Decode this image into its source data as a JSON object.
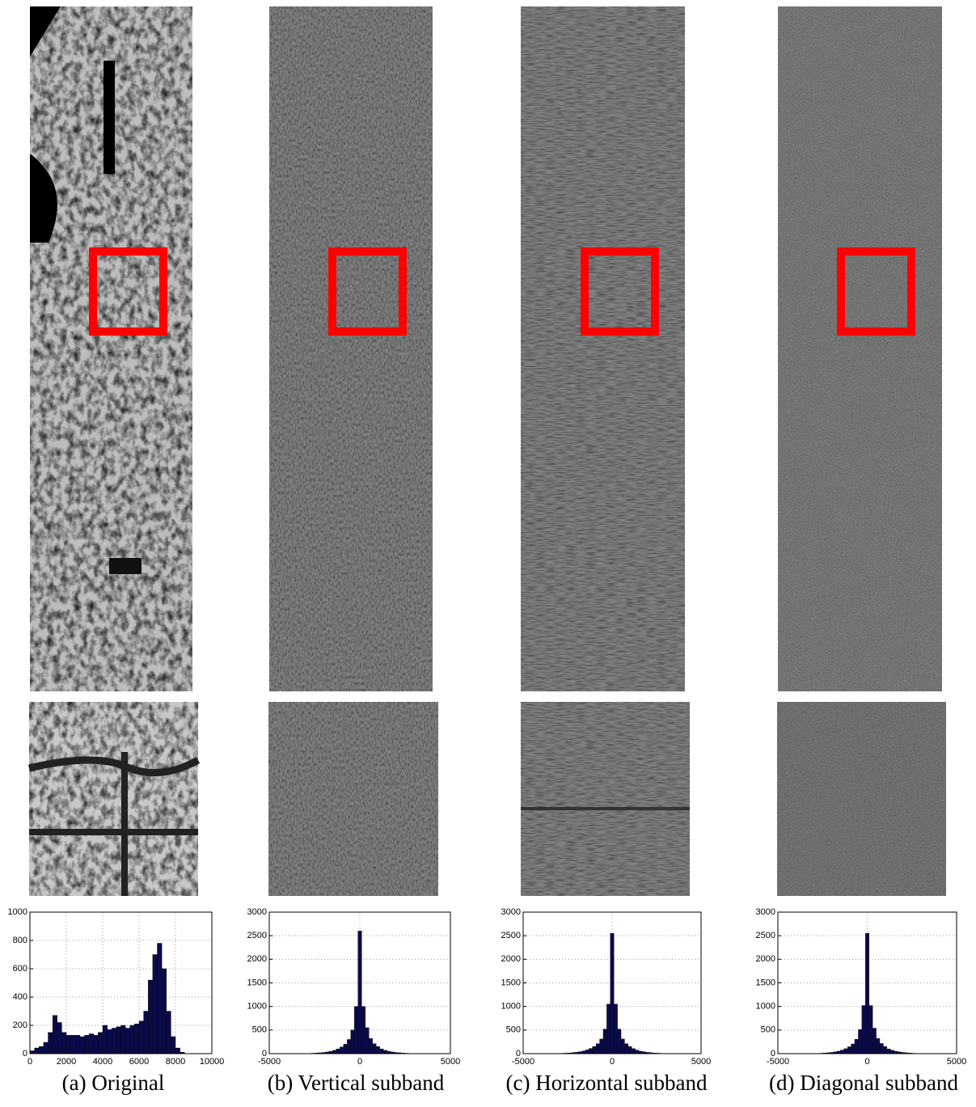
{
  "chart_data": [
    {
      "type": "histogram",
      "caption": "(a) Original",
      "color": "#0b0b4a",
      "grid": true,
      "xlim": [
        0,
        10000
      ],
      "xticks": [
        0,
        2000,
        4000,
        6000,
        8000,
        10000
      ],
      "ylim": [
        0,
        1000
      ],
      "yticks": [
        0,
        200,
        400,
        600,
        800,
        1000
      ],
      "bins": [
        0,
        250,
        500,
        750,
        1000,
        1250,
        1500,
        1750,
        2000,
        2250,
        2500,
        2750,
        3000,
        3250,
        3500,
        3750,
        4000,
        4250,
        4500,
        4750,
        5000,
        5250,
        5500,
        5750,
        6000,
        6250,
        6500,
        6750,
        7000,
        7250,
        7500,
        7750,
        8000,
        8250,
        8500
      ],
      "counts": [
        20,
        40,
        50,
        80,
        150,
        270,
        220,
        150,
        130,
        130,
        130,
        120,
        130,
        140,
        130,
        150,
        200,
        170,
        180,
        190,
        200,
        180,
        200,
        210,
        230,
        300,
        520,
        700,
        780,
        600,
        300,
        120,
        40,
        10
      ]
    },
    {
      "type": "histogram",
      "caption": "(b) Vertical subband",
      "color": "#0b0b4a",
      "grid": true,
      "xlim": [
        -5000,
        5000
      ],
      "xticks": [
        -5000,
        0,
        5000
      ],
      "ylim": [
        0,
        3000
      ],
      "yticks": [
        0,
        500,
        1000,
        1500,
        2000,
        2500,
        3000
      ],
      "bins": [
        -3100,
        -2900,
        -2700,
        -2500,
        -2300,
        -2100,
        -1900,
        -1700,
        -1500,
        -1300,
        -1100,
        -900,
        -700,
        -500,
        -300,
        -100,
        100,
        300,
        500,
        700,
        900,
        1100,
        1300,
        1500,
        1700,
        1900,
        2100,
        2300,
        2500,
        2700,
        2900,
        3100
      ],
      "counts": [
        3,
        5,
        8,
        12,
        18,
        25,
        35,
        50,
        70,
        100,
        140,
        200,
        300,
        500,
        1000,
        2600,
        1000,
        550,
        320,
        210,
        150,
        100,
        70,
        50,
        35,
        25,
        18,
        12,
        8,
        5,
        3
      ]
    },
    {
      "type": "histogram",
      "caption": "(c) Horizontal subband",
      "color": "#0b0b4a",
      "grid": true,
      "xlim": [
        -5000,
        5000
      ],
      "xticks": [
        -5000,
        0,
        5000
      ],
      "ylim": [
        0,
        3000
      ],
      "yticks": [
        0,
        500,
        1000,
        1500,
        2000,
        2500,
        3000
      ],
      "bins": [
        -3100,
        -2900,
        -2700,
        -2500,
        -2300,
        -2100,
        -1900,
        -1700,
        -1500,
        -1300,
        -1100,
        -900,
        -700,
        -500,
        -300,
        -100,
        100,
        300,
        500,
        700,
        900,
        1100,
        1300,
        1500,
        1700,
        1900,
        2100,
        2300,
        2500,
        2700,
        2900,
        3100
      ],
      "counts": [
        4,
        6,
        10,
        14,
        20,
        28,
        40,
        55,
        80,
        110,
        150,
        210,
        310,
        520,
        1050,
        2550,
        1050,
        520,
        310,
        210,
        150,
        105,
        75,
        52,
        38,
        27,
        19,
        13,
        9,
        6,
        4
      ]
    },
    {
      "type": "histogram",
      "caption": "(d) Diagonal subband",
      "color": "#0b0b4a",
      "grid": true,
      "xlim": [
        -5000,
        5000
      ],
      "xticks": [
        -5000,
        0,
        5000
      ],
      "ylim": [
        0,
        3000
      ],
      "yticks": [
        0,
        500,
        1000,
        1500,
        2000,
        2500,
        3000
      ],
      "bins": [
        -3100,
        -2900,
        -2700,
        -2500,
        -2300,
        -2100,
        -1900,
        -1700,
        -1500,
        -1300,
        -1100,
        -900,
        -700,
        -500,
        -300,
        -100,
        100,
        300,
        500,
        700,
        900,
        1100,
        1300,
        1500,
        1700,
        1900,
        2100,
        2300,
        2500,
        2700,
        2900,
        3100
      ],
      "counts": [
        3,
        5,
        8,
        12,
        18,
        26,
        36,
        52,
        75,
        105,
        145,
        205,
        305,
        510,
        1020,
        2550,
        1020,
        540,
        320,
        215,
        150,
        100,
        72,
        50,
        36,
        26,
        18,
        12,
        8,
        5,
        3
      ]
    }
  ]
}
